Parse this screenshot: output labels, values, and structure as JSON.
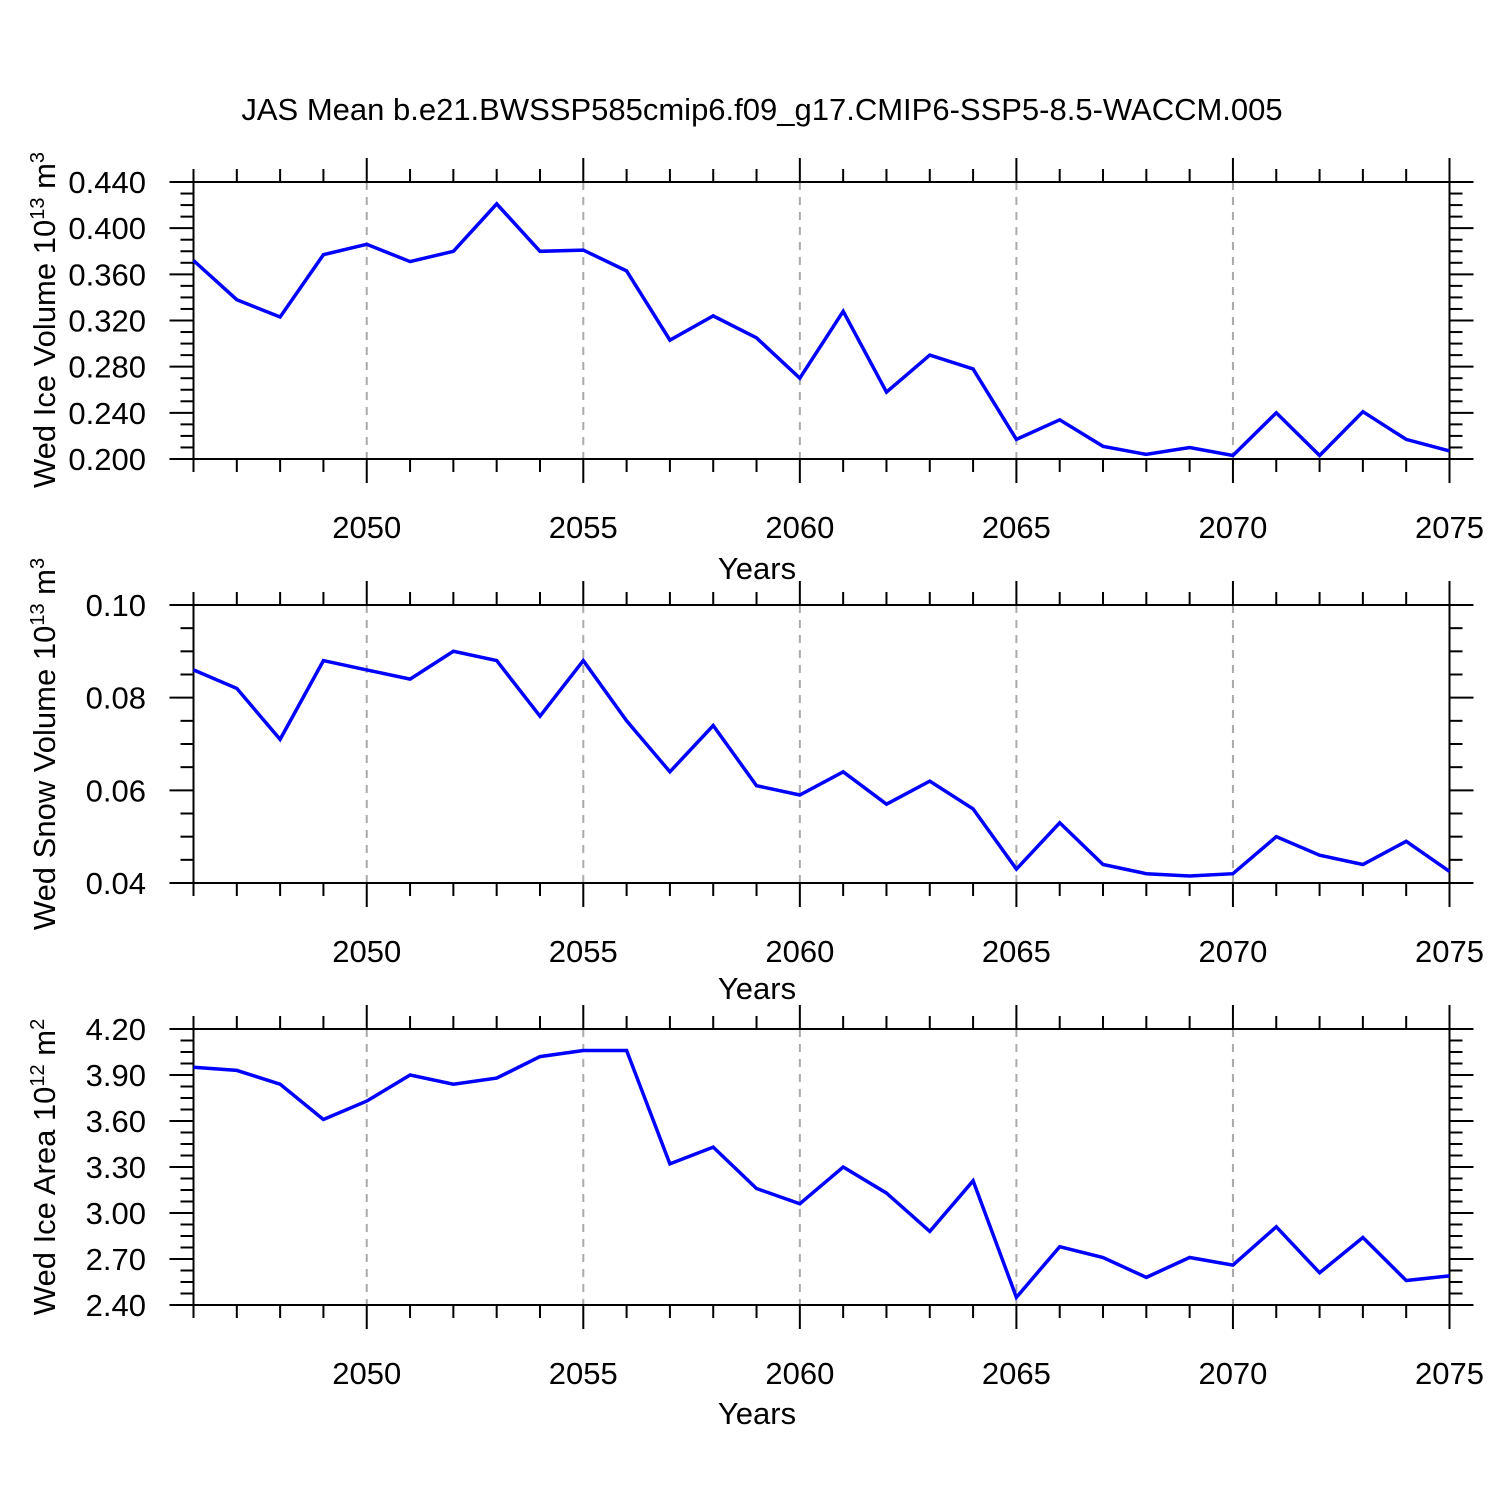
{
  "title": "JAS Mean b.e21.BWSSP585cmip6.f09_g17.CMIP6-SSP5-8.5-WACCM.005",
  "colors": {
    "line": "#0000ff",
    "axis": "#000000",
    "grid": "#aaaaaa",
    "background": "#ffffff",
    "text": "#000000"
  },
  "chart_data": [
    {
      "type": "line",
      "ylabel_base": "Wed Ice Volume 10",
      "ylabel_exp": "13",
      "ylabel_unit": " m",
      "ylabel_unit_exp": "3",
      "xlabel": "Years",
      "xlim": [
        2046,
        2075
      ],
      "ylim": [
        0.2,
        0.44
      ],
      "xtick_values": [
        2050,
        2055,
        2060,
        2065,
        2070,
        2075
      ],
      "xtick_labels": [
        "2050",
        "2055",
        "2060",
        "2065",
        "2070",
        "2075"
      ],
      "grid_x": [
        2050,
        2055,
        2060,
        2065,
        2070
      ],
      "ytick_values": [
        0.2,
        0.24,
        0.28,
        0.32,
        0.36,
        0.4,
        0.44
      ],
      "ytick_labels": [
        "0.200",
        "0.240",
        "0.280",
        "0.320",
        "0.360",
        "0.400",
        "0.440"
      ],
      "ytick_minor_step": 0.01,
      "x": [
        2046,
        2047,
        2048,
        2049,
        2050,
        2051,
        2052,
        2053,
        2054,
        2055,
        2056,
        2057,
        2058,
        2059,
        2060,
        2061,
        2062,
        2063,
        2064,
        2065,
        2066,
        2067,
        2068,
        2069,
        2070,
        2071,
        2072,
        2073,
        2074,
        2075
      ],
      "values": [
        0.372,
        0.338,
        0.323,
        0.377,
        0.386,
        0.371,
        0.38,
        0.421,
        0.38,
        0.381,
        0.363,
        0.303,
        0.324,
        0.305,
        0.27,
        0.328,
        0.258,
        0.29,
        0.278,
        0.217,
        0.234,
        0.211,
        0.204,
        0.21,
        0.203,
        0.24,
        0.203,
        0.241,
        0.217,
        0.207
      ]
    },
    {
      "type": "line",
      "ylabel_base": "Wed Snow Volume 10",
      "ylabel_exp": "13",
      "ylabel_unit": " m",
      "ylabel_unit_exp": "3",
      "xlabel": "Years",
      "xlim": [
        2046,
        2075
      ],
      "ylim": [
        0.04,
        0.1
      ],
      "xtick_values": [
        2050,
        2055,
        2060,
        2065,
        2070,
        2075
      ],
      "xtick_labels": [
        "2050",
        "2055",
        "2060",
        "2065",
        "2070",
        "2075"
      ],
      "grid_x": [
        2050,
        2055,
        2060,
        2065,
        2070
      ],
      "ytick_values": [
        0.04,
        0.06,
        0.08,
        0.1
      ],
      "ytick_labels": [
        "0.04",
        "0.06",
        "0.08",
        "0.10"
      ],
      "ytick_minor_step": 0.005,
      "x": [
        2046,
        2047,
        2048,
        2049,
        2050,
        2051,
        2052,
        2053,
        2054,
        2055,
        2056,
        2057,
        2058,
        2059,
        2060,
        2061,
        2062,
        2063,
        2064,
        2065,
        2066,
        2067,
        2068,
        2069,
        2070,
        2071,
        2072,
        2073,
        2074,
        2075
      ],
      "values": [
        0.086,
        0.082,
        0.071,
        0.088,
        0.086,
        0.084,
        0.09,
        0.088,
        0.076,
        0.088,
        0.075,
        0.064,
        0.074,
        0.061,
        0.059,
        0.064,
        0.057,
        0.062,
        0.056,
        0.043,
        0.053,
        0.044,
        0.042,
        0.0415,
        0.042,
        0.05,
        0.046,
        0.044,
        0.049,
        0.0425
      ]
    },
    {
      "type": "line",
      "ylabel_base": "Wed Ice Area 10",
      "ylabel_exp": "12",
      "ylabel_unit": " m",
      "ylabel_unit_exp": "2",
      "xlabel": "Years",
      "xlim": [
        2046,
        2075
      ],
      "ylim": [
        2.4,
        4.2
      ],
      "xtick_values": [
        2050,
        2055,
        2060,
        2065,
        2070,
        2075
      ],
      "xtick_labels": [
        "2050",
        "2055",
        "2060",
        "2065",
        "2070",
        "2075"
      ],
      "grid_x": [
        2050,
        2055,
        2060,
        2065,
        2070
      ],
      "ytick_values": [
        2.4,
        2.7,
        3.0,
        3.3,
        3.6,
        3.9,
        4.2
      ],
      "ytick_labels": [
        "2.40",
        "2.70",
        "3.00",
        "3.30",
        "3.60",
        "3.90",
        "4.20"
      ],
      "ytick_minor_step": 0.075,
      "x": [
        2046,
        2047,
        2048,
        2049,
        2050,
        2051,
        2052,
        2053,
        2054,
        2055,
        2056,
        2057,
        2058,
        2059,
        2060,
        2061,
        2062,
        2063,
        2064,
        2065,
        2066,
        2067,
        2068,
        2069,
        2070,
        2071,
        2072,
        2073,
        2074,
        2075
      ],
      "values": [
        3.95,
        3.93,
        3.84,
        3.61,
        3.73,
        3.9,
        3.84,
        3.88,
        4.02,
        4.06,
        4.06,
        3.32,
        3.43,
        3.16,
        3.06,
        3.3,
        3.13,
        2.88,
        3.21,
        2.45,
        2.78,
        2.71,
        2.58,
        2.71,
        2.66,
        2.91,
        2.61,
        2.84,
        2.56,
        2.59
      ]
    }
  ]
}
